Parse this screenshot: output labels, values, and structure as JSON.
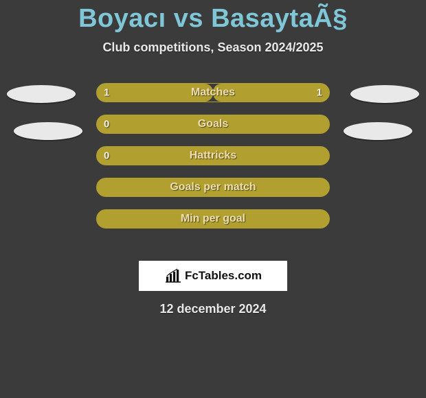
{
  "title": "Boyacı vs BasaytaÃ§",
  "subtitle": "Club competitions, Season 2024/2025",
  "date_text": "12 december 2024",
  "brand": {
    "text": "FcTables.com"
  },
  "colors": {
    "accent": "#b1a02f",
    "accent_border": "#b2a030",
    "track_bg": "#3b3b3b",
    "title_color": "#7fc6d7",
    "text_color": "#e8e8e8",
    "bar_text": "#eeddb0"
  },
  "rows": [
    {
      "label": "Matches",
      "left_val": "1",
      "right_val": "1",
      "left_pct": 50,
      "right_pct": 50,
      "show_left": true,
      "show_right": true
    },
    {
      "label": "Goals",
      "left_val": "0",
      "right_val": "",
      "left_pct": 0,
      "right_pct": 100,
      "show_left": true,
      "show_right": false
    },
    {
      "label": "Hattricks",
      "left_val": "0",
      "right_val": "",
      "left_pct": 100,
      "right_pct": 0,
      "show_left": true,
      "show_right": false
    },
    {
      "label": "Goals per match",
      "left_val": "",
      "right_val": "",
      "left_pct": 0,
      "right_pct": 100,
      "show_left": false,
      "show_right": false
    },
    {
      "label": "Min per goal",
      "left_val": "",
      "right_val": "",
      "left_pct": 0,
      "right_pct": 100,
      "show_left": false,
      "show_right": false
    }
  ]
}
